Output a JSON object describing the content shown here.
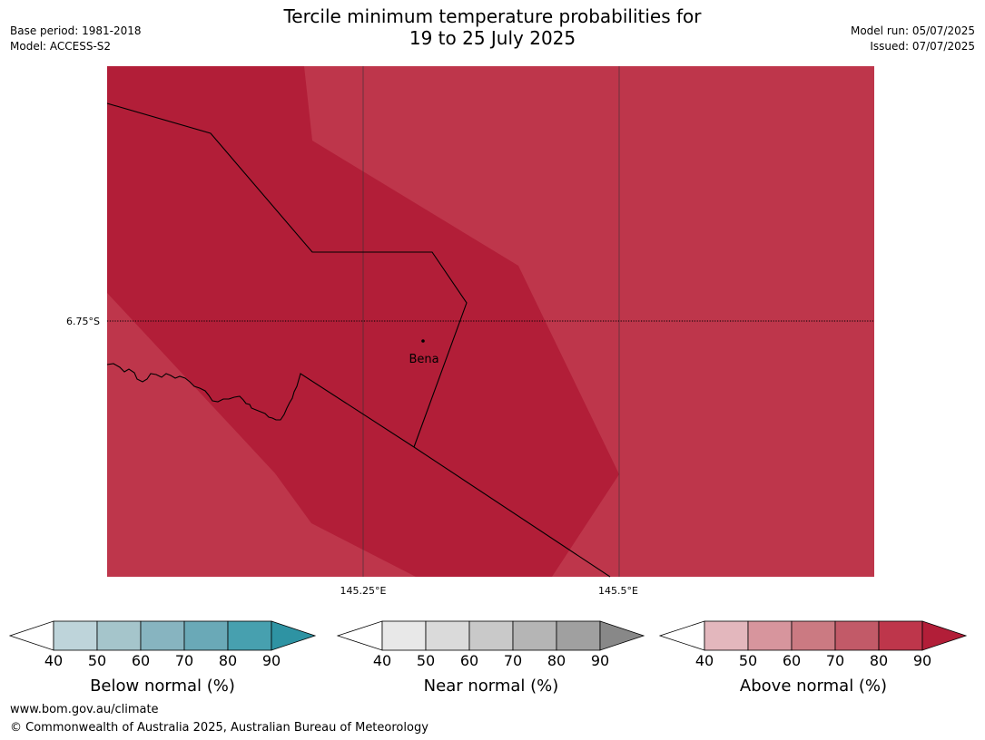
{
  "title": {
    "line1": "Tercile minimum temperature probabilities for",
    "line2": "19 to 25 July 2025"
  },
  "meta_left": {
    "base_period": "Base period: 1981-2018",
    "model": "Model: ACCESS-S2"
  },
  "meta_right": {
    "model_run": "Model run: 05/07/2025",
    "issued": "Issued: 07/07/2025"
  },
  "map": {
    "lat_label": "6.75°S",
    "lon_labels": [
      "145.25°E",
      "145.5°E"
    ],
    "place_label": "Bena",
    "colors": {
      "above_80": "#b21e38",
      "above_70": "#be364b"
    }
  },
  "legends": [
    {
      "label": "Below normal (%)",
      "ticks": [
        "40",
        "50",
        "60",
        "70",
        "80",
        "90"
      ],
      "colors": [
        "#bed4da",
        "#a5c5cb",
        "#87b4c0",
        "#6aa9b7",
        "#47a0af",
        "#2e93a3"
      ]
    },
    {
      "label": "Near normal (%)",
      "ticks": [
        "40",
        "50",
        "60",
        "70",
        "80",
        "90"
      ],
      "colors": [
        "#e8e8e8",
        "#dadada",
        "#c9c9c9",
        "#b5b5b5",
        "#a0a0a0",
        "#888888"
      ]
    },
    {
      "label": "Above normal (%)",
      "ticks": [
        "40",
        "50",
        "60",
        "70",
        "80",
        "90"
      ],
      "colors": [
        "#e3b7bd",
        "#d7959d",
        "#cb7a82",
        "#c25a68",
        "#be364b",
        "#b21e38"
      ]
    }
  ],
  "footer": {
    "url": "www.bom.gov.au/climate",
    "copyright": "© Commonwealth of Australia 2025, Australian Bureau of Meteorology"
  }
}
